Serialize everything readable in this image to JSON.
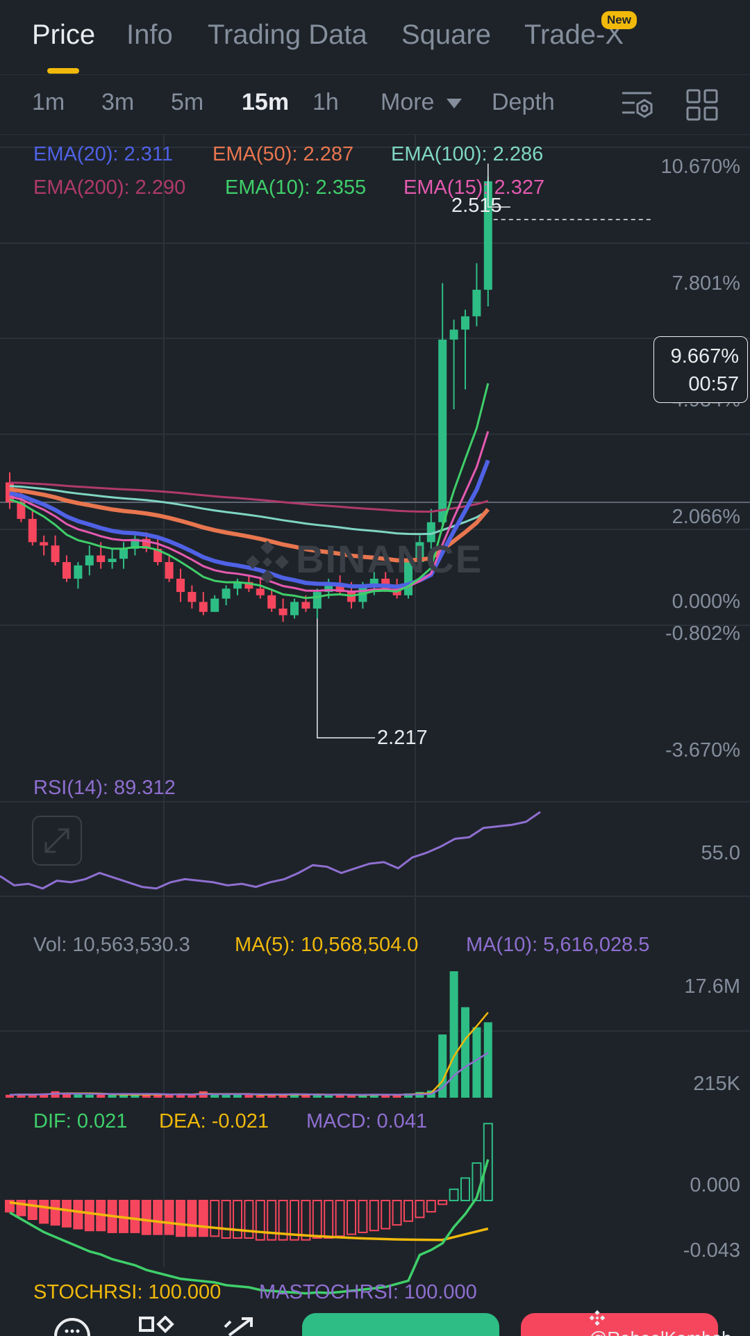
{
  "tabs": [
    {
      "label": "Price",
      "active": true
    },
    {
      "label": "Info"
    },
    {
      "label": "Trading Data"
    },
    {
      "label": "Square"
    },
    {
      "label": "Trade-X"
    }
  ],
  "new_badge": "New",
  "intervals": [
    "1m",
    "3m",
    "5m",
    "15m",
    "1h"
  ],
  "active_interval": "15m",
  "more_label": "More",
  "depth_label": "Depth",
  "icons": [
    "chart-settings-icon",
    "layout-grid-icon",
    "expand-icon",
    "binance-logo-icon"
  ],
  "ema_labels": {
    "ema20": "EMA(20): 2.311",
    "ema50": "EMA(50): 2.287",
    "ema100": "EMA(100): 2.286",
    "ema200": "EMA(200): 2.290",
    "ema10": "EMA(10): 2.355",
    "ema15": "EMA(15): 2.327"
  },
  "colors": {
    "ema20": "#4f62e6",
    "ema50": "#e8764f",
    "ema100": "#7fd6c4",
    "ema200": "#b03a6c",
    "ema10": "#3fcf6a",
    "ema15": "#e45ab0",
    "up": "#2ebd85",
    "down": "#f6465d",
    "accent": "#f0b90b",
    "rsi": "#8f6fd1",
    "dif": "#3fcf6a",
    "dea": "#f0b90b"
  },
  "price_axis": [
    "10.670%",
    "7.801%",
    "4.934%",
    "2.066%",
    "0.000%",
    "-0.802%",
    "-3.670%"
  ],
  "current_price_tag": {
    "pct": "9.667%",
    "countdown": "00:57"
  },
  "high_label": "2.515",
  "low_label": "2.217",
  "watermark": "BINANCE",
  "rsi_label": "RSI(14): 89.312",
  "rsi_axis": "55.0",
  "volume": {
    "vol": "Vol: 10,563,530.3",
    "ma5": "MA(5): 10,568,504.0",
    "ma10": "MA(10): 5,616,028.5",
    "axis_top": "17.6M",
    "axis_bottom": "215K"
  },
  "macd": {
    "dif": "DIF: 0.021",
    "dea": "DEA: -0.021",
    "macd": "MACD: 0.041",
    "axis_top": "0.000",
    "axis_bottom": "-0.043"
  },
  "stochrsi": {
    "stoch": "STOCHRSI: 100.000",
    "ma": "MASTOCHRSI: 100.000"
  },
  "credit": "@RaheelKamboh",
  "chart_data": {
    "type": "candlestick",
    "price_axis_pct": [
      10.67,
      7.801,
      4.934,
      2.066,
      0.0,
      -0.802,
      -3.67
    ],
    "high": 2.515,
    "low": 2.217,
    "candles_pct": [
      [
        0.6,
        0.9,
        -0.2,
        0.0
      ],
      [
        0.0,
        0.3,
        -0.6,
        -0.5
      ],
      [
        -0.5,
        -0.2,
        -1.3,
        -1.2
      ],
      [
        -1.2,
        -1.0,
        -1.6,
        -1.3
      ],
      [
        -1.3,
        -1.0,
        -1.9,
        -1.8
      ],
      [
        -1.8,
        -1.6,
        -2.4,
        -2.3
      ],
      [
        -2.3,
        -1.8,
        -2.6,
        -1.9
      ],
      [
        -1.9,
        -1.3,
        -2.2,
        -1.6
      ],
      [
        -1.6,
        -1.2,
        -2.0,
        -1.8
      ],
      [
        -1.8,
        -1.4,
        -2.0,
        -1.7
      ],
      [
        -1.7,
        -1.2,
        -2.0,
        -1.4
      ],
      [
        -1.4,
        -1.0,
        -1.6,
        -1.1
      ],
      [
        -1.1,
        -0.9,
        -1.5,
        -1.4
      ],
      [
        -1.4,
        -1.1,
        -1.9,
        -1.8
      ],
      [
        -1.8,
        -1.6,
        -2.4,
        -2.3
      ],
      [
        -2.3,
        -2.0,
        -3.0,
        -2.7
      ],
      [
        -2.7,
        -2.5,
        -3.2,
        -3.0
      ],
      [
        -3.0,
        -2.7,
        -3.4,
        -3.3
      ],
      [
        -3.3,
        -2.8,
        -3.3,
        -2.9
      ],
      [
        -2.9,
        -2.5,
        -3.1,
        -2.6
      ],
      [
        -2.6,
        -2.3,
        -2.8,
        -2.4
      ],
      [
        -2.4,
        -2.2,
        -2.7,
        -2.6
      ],
      [
        -2.6,
        -2.3,
        -2.9,
        -2.8
      ],
      [
        -2.8,
        -2.6,
        -3.3,
        -3.2
      ],
      [
        -3.2,
        -2.9,
        -3.6,
        -3.4
      ],
      [
        -3.4,
        -2.9,
        -3.5,
        -3.0
      ],
      [
        -3.0,
        -2.8,
        -3.3,
        -3.2
      ],
      [
        -3.2,
        -2.6,
        -3.5,
        -2.7
      ],
      [
        -2.7,
        -2.3,
        -2.9,
        -2.5
      ],
      [
        -2.5,
        -2.2,
        -2.8,
        -2.7
      ],
      [
        -2.7,
        -2.4,
        -3.2,
        -3.0
      ],
      [
        -3.0,
        -2.4,
        -3.2,
        -2.5
      ],
      [
        -2.5,
        -2.1,
        -2.8,
        -2.3
      ],
      [
        -2.3,
        -2.1,
        -2.7,
        -2.6
      ],
      [
        -2.6,
        -2.3,
        -2.9,
        -2.8
      ],
      [
        -2.8,
        -1.7,
        -2.9,
        -1.8
      ],
      [
        -1.8,
        -1.0,
        -2.0,
        -1.2
      ],
      [
        -1.2,
        -0.2,
        -1.4,
        -0.6
      ],
      [
        -0.6,
        6.6,
        -0.7,
        4.9
      ],
      [
        4.9,
        5.5,
        2.8,
        5.2
      ],
      [
        5.2,
        5.8,
        3.4,
        5.6
      ],
      [
        5.6,
        7.2,
        5.3,
        6.4
      ],
      [
        6.4,
        9.8,
        5.9,
        9.667
      ]
    ],
    "rsi": [
      48,
      42,
      43,
      40,
      45,
      44,
      46,
      50,
      47,
      44,
      41,
      40,
      44,
      46,
      45,
      44,
      42,
      43,
      41,
      44,
      46,
      50,
      55,
      54,
      50,
      53,
      56,
      57,
      53,
      60,
      63,
      67,
      72,
      73,
      79,
      80,
      81,
      83,
      89.312
    ],
    "volume_m": [
      0.4,
      0.5,
      0.4,
      0.6,
      0.9,
      0.6,
      0.5,
      0.4,
      0.5,
      0.4,
      0.4,
      0.5,
      0.4,
      0.6,
      0.4,
      0.5,
      0.4,
      0.9,
      0.4,
      0.4,
      0.5,
      0.4,
      0.3,
      0.5,
      0.4,
      0.6,
      0.4,
      0.4,
      0.3,
      0.5,
      0.4,
      0.3,
      0.5,
      0.4,
      0.4,
      0.6,
      0.8,
      1.0,
      8.8,
      17.6,
      12.6,
      9.8,
      10.5
    ],
    "macd_hist": [
      -0.006,
      -0.008,
      -0.01,
      -0.012,
      -0.013,
      -0.014,
      -0.015,
      -0.016,
      -0.016,
      -0.017,
      -0.017,
      -0.017,
      -0.018,
      -0.018,
      -0.018,
      -0.019,
      -0.019,
      -0.019,
      -0.019,
      -0.02,
      -0.02,
      -0.02,
      -0.021,
      -0.021,
      -0.021,
      -0.021,
      -0.021,
      -0.02,
      -0.02,
      -0.019,
      -0.018,
      -0.017,
      -0.016,
      -0.015,
      -0.013,
      -0.011,
      -0.009,
      -0.006,
      -0.002,
      0.006,
      0.012,
      0.02,
      0.041
    ]
  }
}
